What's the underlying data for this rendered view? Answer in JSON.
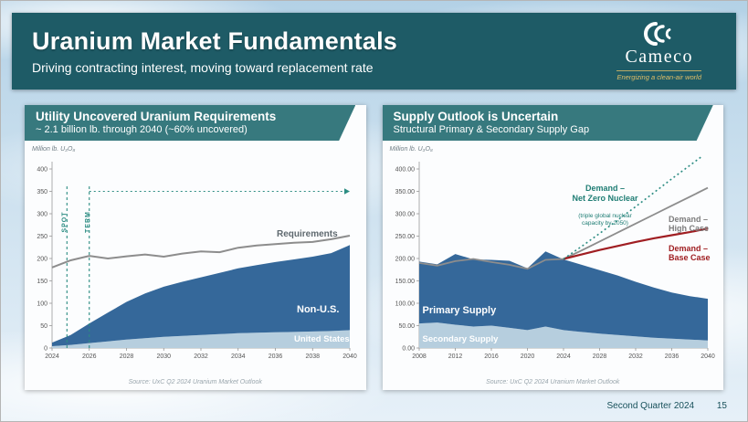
{
  "header": {
    "title": "Uranium Market Fundamentals",
    "subtitle": "Driving contracting interest, moving toward replacement rate"
  },
  "logo": {
    "name": "Cameco",
    "tagline": "Energizing a clean-air world"
  },
  "footer": {
    "label": "Second Quarter 2024",
    "page": "15"
  },
  "left_panel": {
    "banner_title": "Utility Uncovered Uranium Requirements",
    "banner_subtitle": "~ 2.1 billion lb. through 2040 (~60% uncovered)",
    "ylabel": "Million lb. U₃O₈",
    "labels": {
      "requirements": "Requirements",
      "non_us": "Non-U.S.",
      "united_states": "United States"
    },
    "source": "Source: UxC Q2 2024 Uranium Market Outlook"
  },
  "right_panel": {
    "banner_title": "Supply Outlook is Uncertain",
    "banner_subtitle": "Structural Primary & Secondary Supply Gap",
    "ylabel": "Million lb. U₃O₈",
    "labels": {
      "net_zero": "Demand –\nNet Zero Nuclear",
      "net_zero_note": "(triple global nuclear\ncapacity by 2050)",
      "high_case": "Demand –\nHigh Case",
      "base_case": "Demand –\nBase Case",
      "primary": "Primary Supply",
      "secondary": "Secondary Supply"
    },
    "source": "Source: UxC Q2 2024 Uranium Market Outlook"
  },
  "chart_data": [
    {
      "type": "area",
      "title": "Utility Uncovered Uranium Requirements",
      "subtitle": "~ 2.1 billion lb. through 2040 (~60% uncovered)",
      "ylabel": "Million lb. U₃O₈",
      "ylim": [
        0,
        400
      ],
      "ytick_step": 50,
      "ytick_format": "int",
      "x": [
        2024,
        2025,
        2026,
        2027,
        2028,
        2029,
        2030,
        2031,
        2032,
        2033,
        2034,
        2035,
        2036,
        2037,
        2038,
        2039,
        2040
      ],
      "xticks": [
        2024,
        2026,
        2028,
        2030,
        2032,
        2034,
        2036,
        2038,
        2040
      ],
      "series": [
        {
          "name": "United States",
          "kind": "area",
          "color": "#b6cede",
          "values": [
            4,
            7,
            11,
            15,
            19,
            22,
            25,
            27,
            29,
            31,
            33,
            34,
            35,
            36,
            37,
            38,
            40
          ]
        },
        {
          "name": "Non-U.S.",
          "kind": "area",
          "color": "#35689a",
          "values": [
            8,
            22,
            44,
            64,
            84,
            100,
            112,
            121,
            129,
            137,
            145,
            151,
            157,
            162,
            167,
            174,
            190
          ]
        },
        {
          "name": "Requirements",
          "kind": "line",
          "color": "#8d8d8d",
          "width": 2,
          "values": [
            180,
            196,
            206,
            200,
            205,
            209,
            204,
            211,
            216,
            214,
            224,
            229,
            232,
            235,
            237,
            243,
            251
          ]
        }
      ],
      "annotations": {
        "color": "#2b8c82",
        "vlines": [
          {
            "x": 2024.8,
            "label": "SPOT"
          },
          {
            "x": 2026.0,
            "label": "TERM"
          }
        ],
        "arrow": {
          "y": 350,
          "from": 2026.0,
          "to": 2040
        }
      },
      "source": "Source: UxC Q2 2024 Uranium Market Outlook"
    },
    {
      "type": "area",
      "title": "Supply Outlook is Uncertain",
      "subtitle": "Structural Primary & Secondary Supply Gap",
      "ylabel": "Million lb. U₃O₈",
      "ylim": [
        0,
        400
      ],
      "ytick_step": 50,
      "ytick_format": "2dp",
      "x": [
        2008,
        2010,
        2012,
        2014,
        2016,
        2018,
        2020,
        2022,
        2024,
        2026,
        2028,
        2030,
        2032,
        2034,
        2036,
        2038,
        2040
      ],
      "xticks": [
        2008,
        2012,
        2016,
        2020,
        2024,
        2028,
        2032,
        2036,
        2040
      ],
      "series": [
        {
          "name": "Secondary Supply",
          "kind": "area",
          "color": "#b6cede",
          "values": [
            55,
            57,
            52,
            48,
            50,
            45,
            40,
            48,
            40,
            36,
            32,
            29,
            26,
            23,
            21,
            19,
            17
          ]
        },
        {
          "name": "Primary Supply",
          "kind": "area",
          "color": "#35689a",
          "values": [
            138,
            130,
            158,
            150,
            147,
            150,
            138,
            168,
            158,
            150,
            142,
            133,
            122,
            112,
            103,
            97,
            93
          ]
        },
        {
          "name": "Demand – High Case",
          "kind": "line",
          "color": "#8d8d8d",
          "width": 1.8,
          "values": [
            190,
            184,
            194,
            199,
            192,
            186,
            177,
            197,
            199,
            218,
            238,
            258,
            278,
            298,
            318,
            338,
            358
          ]
        },
        {
          "name": "Demand – Base Case",
          "kind": "line",
          "color": "#a01e22",
          "width": 2.2,
          "x": [
            2024,
            2026,
            2028,
            2030,
            2032,
            2034,
            2036,
            2038,
            2040
          ],
          "values": [
            199,
            209,
            219,
            228,
            237,
            245,
            252,
            259,
            267
          ]
        },
        {
          "name": "Demand – Net Zero Nuclear",
          "kind": "line",
          "color": "#2b8c82",
          "width": 1.6,
          "dash": "2 3",
          "x": [
            2024,
            2026,
            2028,
            2030,
            2032,
            2034,
            2036,
            2038,
            2040
          ],
          "values": [
            199,
            227,
            256,
            286,
            316,
            347,
            378,
            408,
            438
          ]
        }
      ],
      "source": "Source: UxC Q2 2024 Uranium Market Outlook"
    }
  ]
}
